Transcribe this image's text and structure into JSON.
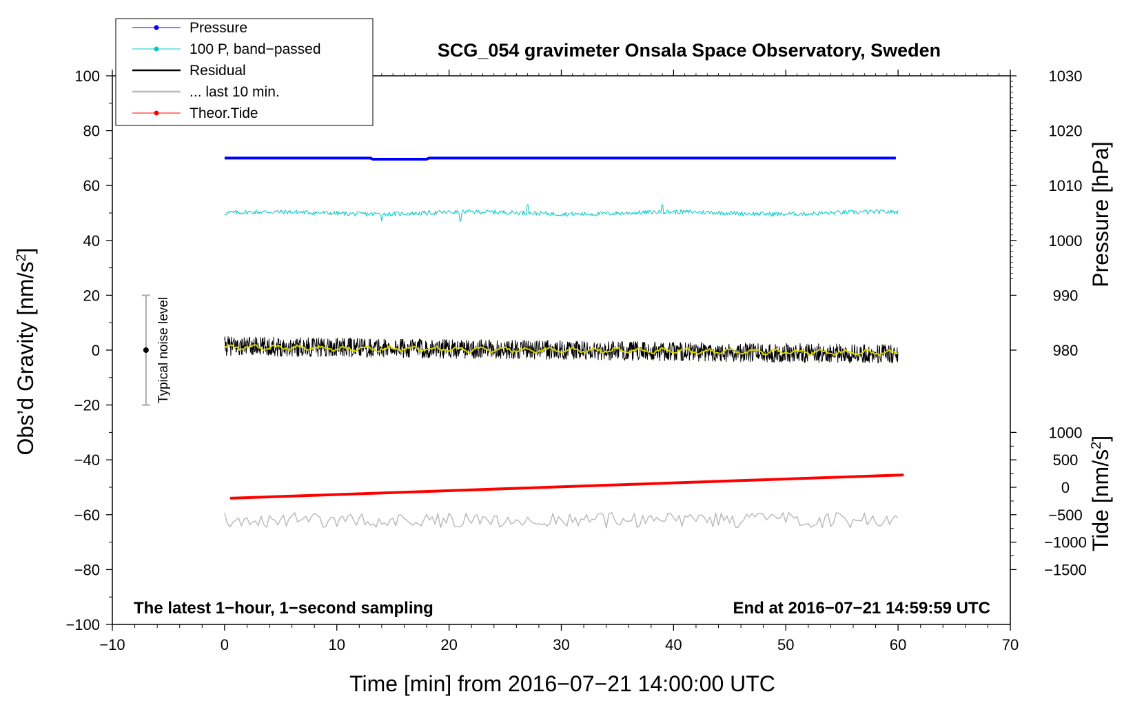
{
  "chart_data": {
    "type": "line",
    "title": "SCG_054 gravimeter Onsala Space Observatory, Sweden",
    "xlabel": "Time [min] from 2016−07−21 14:00:00 UTC",
    "ylabel_left": "Obs’d Gravity [nm/s",
    "ylabel_left_sup": "2",
    "ylabel_left_end": "]",
    "ylabel_right_top": "Pressure [hPa]",
    "ylabel_right_bottom": "Tide [nm/s",
    "ylabel_right_bottom_sup": "2",
    "ylabel_right_bottom_end": "]",
    "xlim": [
      -10,
      70
    ],
    "ylim": [
      -100,
      100
    ],
    "x_ticks": [
      -10,
      0,
      10,
      20,
      30,
      40,
      50,
      60,
      70
    ],
    "x_tick_labels": [
      "−10",
      "0",
      "10",
      "20",
      "30",
      "40",
      "50",
      "60",
      "70"
    ],
    "y_ticks": [
      -100,
      -80,
      -60,
      -40,
      -20,
      0,
      20,
      40,
      60,
      80,
      100
    ],
    "y_tick_labels": [
      "−100",
      "−80",
      "−60",
      "−40",
      "−20",
      "0",
      "20",
      "40",
      "60",
      "80",
      "100"
    ],
    "pressure_axis": {
      "ticks": [
        980,
        990,
        1000,
        1010,
        1020,
        1030
      ],
      "tick_labels": [
        "980",
        "990",
        "1000",
        "1010",
        "1020",
        "1030"
      ],
      "ref_hpa": 1010,
      "ref_y": 60,
      "scale_y_per_hpa": 2.0
    },
    "tide_axis": {
      "ticks": [
        -1500,
        -1000,
        -500,
        0,
        500,
        1000
      ],
      "tick_labels": [
        "−1500",
        "−1000",
        "−500",
        "0",
        "500",
        "1000"
      ],
      "ref_y": -50,
      "scale_y_per_unit": 0.02
    },
    "legend": [
      {
        "label": "Pressure",
        "color": "#0000ff",
        "marker": true
      },
      {
        "label": "100 P, band−passed",
        "color": "#00c8c8",
        "marker": true
      },
      {
        "label": "Residual",
        "color": "#000000",
        "marker": false
      },
      {
        "label": "... last 10 min.",
        "color": "#bbbbbb",
        "marker": false
      },
      {
        "label": "Theor.Tide",
        "color": "#ff0000",
        "marker": true
      }
    ],
    "series": [
      {
        "name": "Pressure",
        "color": "#0000ff",
        "x_range": [
          0,
          60
        ],
        "level": 70,
        "dip": {
          "x": [
            13,
            18
          ],
          "depth": 0.4
        }
      },
      {
        "name": "100 P, band−passed",
        "color": "#00c8c8",
        "x_range": [
          0,
          60
        ],
        "level": 50,
        "noise_amplitude": 1.6,
        "spikes": [
          {
            "x": 27,
            "y_min": 46,
            "y_max": 53
          },
          {
            "x": 14,
            "y_min": 47
          },
          {
            "x": 21,
            "y_min": 47
          },
          {
            "x": 39,
            "y_max": 53
          }
        ]
      },
      {
        "name": "Residual",
        "color": "#000000",
        "x_range": [
          0,
          60
        ],
        "start": 1.5,
        "end": -1.5,
        "noise_amplitude": 3.5
      },
      {
        "name": "Residual smoothed",
        "color": "#d8d800",
        "x_range": [
          0,
          60
        ],
        "start": 1.0,
        "end": -1.0,
        "noise_amplitude": 1.0
      },
      {
        "name": "Theor.Tide",
        "color": "#ff0000",
        "x_range": [
          0.5,
          60.5
        ],
        "y_start": -54,
        "y_end": -45.5
      },
      {
        "name": "... last 10 min.",
        "color": "#bbbbbb",
        "x_range": [
          0,
          60
        ],
        "level": -62,
        "noise_amplitude": 2.8
      }
    ],
    "noise_indicator": {
      "x": -7,
      "y": 0,
      "y_min": -20,
      "y_max": 20,
      "label": "Typical noise level"
    },
    "annotations": {
      "bottom_left": "The latest 1−hour, 1−second sampling",
      "bottom_right": "End at 2016−07−21 14:59:59 UTC"
    }
  }
}
